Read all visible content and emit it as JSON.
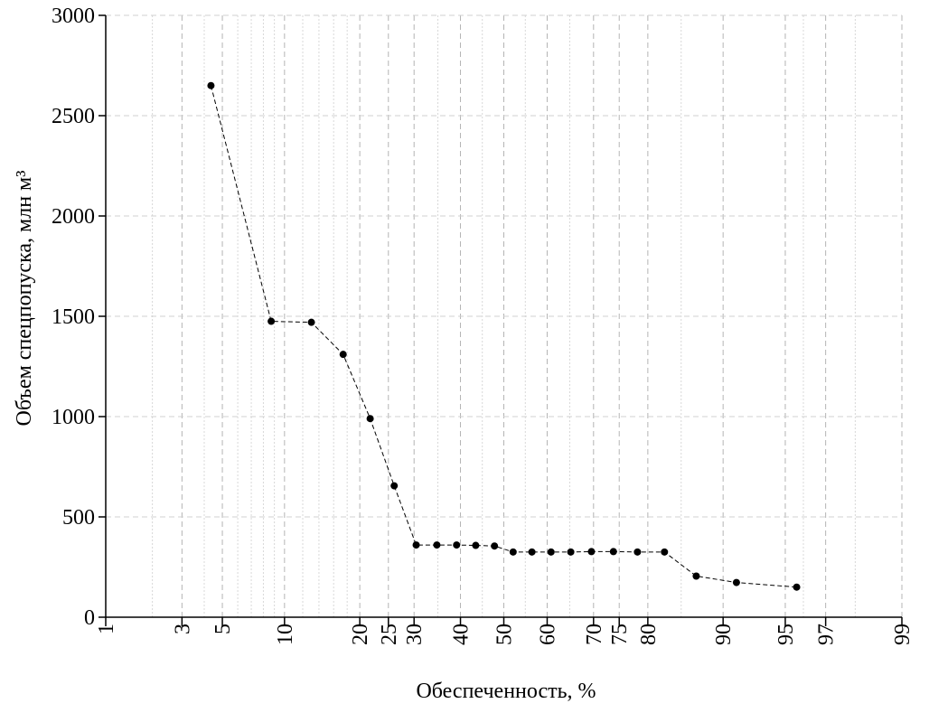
{
  "chart_data": {
    "type": "line",
    "x_label": "Обеспеченность, %",
    "y_label": "Объем спецпопуска, млн м³",
    "xscale": "probability",
    "xlim": [
      1,
      99
    ],
    "xticks": [
      1,
      3,
      5,
      10,
      20,
      25,
      30,
      40,
      50,
      60,
      70,
      75,
      80,
      90,
      95,
      97,
      99
    ],
    "xminorticks": [
      2,
      4,
      6,
      7,
      8,
      9,
      12,
      14,
      16,
      18,
      35,
      45,
      55,
      65,
      85,
      96,
      98
    ],
    "ylim": [
      0,
      3000
    ],
    "yticks": [
      0,
      500,
      1000,
      1500,
      2000,
      2500,
      3000
    ],
    "grid": true,
    "series": [
      {
        "color": "#000000",
        "x": [
          4.35,
          8.7,
          13.04,
          17.39,
          21.74,
          26.09,
          30.43,
          34.78,
          39.13,
          43.48,
          47.83,
          52.17,
          56.52,
          60.87,
          65.22,
          69.57,
          73.91,
          78.26,
          82.61,
          86.96,
          91.3,
          95.65
        ],
        "values": [
          2650,
          1475,
          1470,
          1310,
          990,
          655,
          360,
          360,
          360,
          358,
          355,
          325,
          325,
          325,
          325,
          327,
          327,
          325,
          325,
          205,
          173,
          150
        ]
      }
    ]
  }
}
